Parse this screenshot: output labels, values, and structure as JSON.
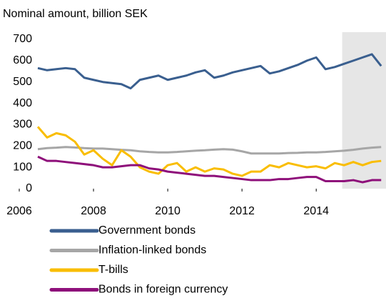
{
  "chart_data": {
    "type": "line",
    "title": "Nominal amount, billion SEK",
    "x": [
      2006.5,
      2006.75,
      2007,
      2007.25,
      2007.5,
      2007.75,
      2008,
      2008.25,
      2008.5,
      2008.75,
      2009,
      2009.25,
      2009.5,
      2009.75,
      2010,
      2010.25,
      2010.5,
      2010.75,
      2011,
      2011.25,
      2011.5,
      2011.75,
      2012,
      2012.25,
      2012.5,
      2012.75,
      2013,
      2013.25,
      2013.5,
      2013.75,
      2014,
      2014.25,
      2014.5,
      2014.75,
      2015,
      2015.25,
      2015.5,
      2015.75
    ],
    "series": [
      {
        "name": "Government bonds",
        "color": "#3a5f8f",
        "values": [
          565,
          555,
          560,
          565,
          560,
          520,
          510,
          500,
          495,
          490,
          470,
          510,
          520,
          530,
          510,
          520,
          530,
          545,
          555,
          520,
          530,
          545,
          555,
          565,
          575,
          540,
          550,
          565,
          580,
          600,
          615,
          560,
          570,
          585,
          600,
          615,
          630,
          575
        ]
      },
      {
        "name": "Inflation-linked bonds",
        "color": "#a6a6a6",
        "values": [
          185,
          190,
          192,
          195,
          193,
          190,
          188,
          188,
          185,
          182,
          180,
          175,
          172,
          170,
          170,
          172,
          175,
          178,
          180,
          183,
          185,
          183,
          175,
          165,
          165,
          165,
          165,
          167,
          168,
          170,
          170,
          172,
          175,
          178,
          182,
          188,
          192,
          195
        ]
      },
      {
        "name": "T-bills",
        "color": "#f9bd00",
        "values": [
          290,
          240,
          260,
          250,
          220,
          160,
          180,
          140,
          110,
          180,
          150,
          100,
          80,
          70,
          110,
          120,
          80,
          100,
          80,
          95,
          90,
          70,
          60,
          80,
          80,
          110,
          100,
          120,
          110,
          100,
          105,
          95,
          120,
          110,
          125,
          110,
          125,
          130
        ]
      },
      {
        "name": "Bonds in foreign currency",
        "color": "#8e0f7a",
        "values": [
          150,
          130,
          130,
          125,
          120,
          115,
          110,
          100,
          100,
          105,
          110,
          110,
          95,
          90,
          80,
          75,
          70,
          65,
          60,
          60,
          55,
          50,
          45,
          40,
          40,
          40,
          45,
          45,
          50,
          55,
          55,
          35,
          35,
          35,
          40,
          30,
          40,
          40
        ]
      }
    ],
    "xlim": [
      2006,
      2015.88
    ],
    "xticks": [
      2006,
      2008,
      2010,
      2012,
      2014
    ],
    "ylim": [
      0,
      700
    ],
    "yticks": [
      0,
      100,
      200,
      300,
      400,
      500,
      600,
      700
    ],
    "shaded_xrange": [
      2014.7,
      2015.88
    ],
    "shade_color": "#e6e6e6"
  }
}
